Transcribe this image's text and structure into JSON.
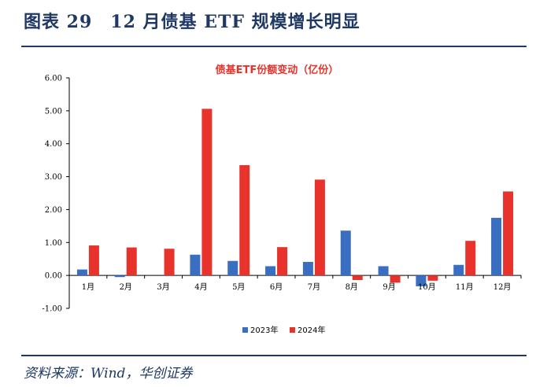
{
  "header": {
    "title": "图表 29　12 月债基 ETF 规模增长明显"
  },
  "footer": {
    "source": "资料来源：Wind，华创证券"
  },
  "colors": {
    "header": "#1f3864",
    "series_2023": "#3a6ec0",
    "series_2024": "#e8322c"
  },
  "chart_data": {
    "type": "bar",
    "title": "债基ETF份额变动（亿份）",
    "xlabel": "",
    "ylabel": "",
    "categories": [
      "1月",
      "2月",
      "3月",
      "4月",
      "5月",
      "6月",
      "7月",
      "8月",
      "9月",
      "10月",
      "11月",
      "12月"
    ],
    "series": [
      {
        "name": "2023年",
        "values": [
          0.18,
          -0.05,
          0.0,
          0.63,
          0.44,
          0.28,
          0.41,
          1.36,
          0.28,
          -0.33,
          0.32,
          1.75
        ]
      },
      {
        "name": "2024年",
        "values": [
          0.91,
          0.85,
          0.81,
          5.06,
          3.35,
          0.86,
          2.91,
          -0.14,
          -0.22,
          -0.16,
          1.05,
          2.55
        ]
      }
    ],
    "ylim": [
      -1.0,
      6.0
    ],
    "yticks": [
      "6.00",
      "5.00",
      "4.00",
      "3.00",
      "2.00",
      "1.00",
      "0.00",
      "-1.00"
    ],
    "ytick_values": [
      6,
      5,
      4,
      3,
      2,
      1,
      0,
      -1
    ],
    "grid": false,
    "legend": "bottom"
  }
}
